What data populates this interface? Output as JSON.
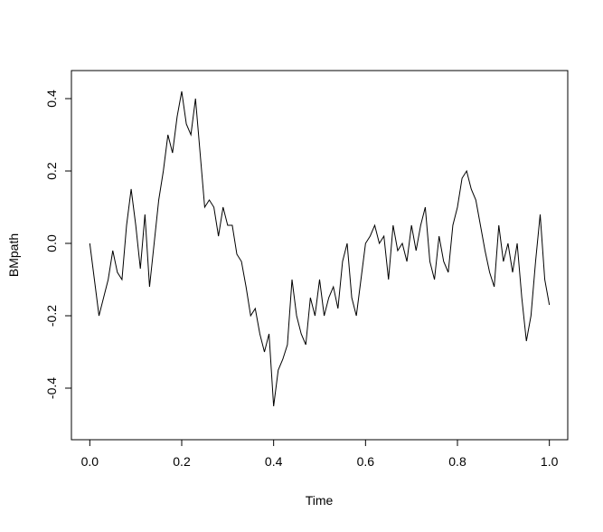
{
  "chart_data": {
    "type": "line",
    "xlabel": "Time",
    "ylabel": "BMpath",
    "x": [
      0,
      0.01,
      0.02,
      0.03,
      0.04,
      0.05,
      0.06,
      0.07,
      0.08,
      0.09,
      0.1,
      0.11,
      0.12,
      0.13,
      0.14,
      0.15,
      0.16,
      0.17,
      0.18,
      0.19,
      0.2,
      0.21,
      0.22,
      0.23,
      0.24,
      0.25,
      0.26,
      0.27,
      0.28,
      0.29,
      0.3,
      0.31,
      0.32,
      0.33,
      0.34,
      0.35,
      0.36,
      0.37,
      0.38,
      0.39,
      0.4,
      0.41,
      0.42,
      0.43,
      0.44,
      0.45,
      0.46,
      0.47,
      0.48,
      0.49,
      0.5,
      0.51,
      0.52,
      0.53,
      0.54,
      0.55,
      0.56,
      0.57,
      0.58,
      0.59,
      0.6,
      0.61,
      0.62,
      0.63,
      0.64,
      0.65,
      0.66,
      0.67,
      0.68,
      0.69,
      0.7,
      0.71,
      0.72,
      0.73,
      0.74,
      0.75,
      0.76,
      0.77,
      0.78,
      0.79,
      0.8,
      0.81,
      0.82,
      0.83,
      0.84,
      0.85,
      0.86,
      0.87,
      0.88,
      0.89,
      0.9,
      0.91,
      0.92,
      0.93,
      0.94,
      0.95,
      0.96,
      0.97,
      0.98,
      0.99,
      1
    ],
    "series": [
      {
        "color": "#000000",
        "values": [
          0,
          -0.1,
          -0.2,
          -0.15,
          -0.1,
          -0.02,
          -0.08,
          -0.1,
          0.05,
          0.15,
          0.05,
          -0.07,
          0.08,
          -0.12,
          0,
          0.12,
          0.2,
          0.3,
          0.25,
          0.35,
          0.42,
          0.33,
          0.3,
          0.4,
          0.25,
          0.1,
          0.12,
          0.1,
          0.02,
          0.1,
          0.05,
          0.05,
          -0.03,
          -0.05,
          -0.12,
          -0.2,
          -0.18,
          -0.25,
          -0.3,
          -0.25,
          -0.45,
          -0.35,
          -0.32,
          -0.28,
          -0.1,
          -0.2,
          -0.25,
          -0.28,
          -0.15,
          -0.2,
          -0.1,
          -0.2,
          -0.15,
          -0.12,
          -0.18,
          -0.05,
          0,
          -0.15,
          -0.2,
          -0.1,
          0,
          0.02,
          0.05,
          0,
          0.02,
          -0.1,
          0.05,
          -0.02,
          0,
          -0.05,
          0.05,
          -0.02,
          0.05,
          0.1,
          -0.05,
          -0.1,
          0.02,
          -0.05,
          -0.08,
          0.05,
          0.1,
          0.18,
          0.2,
          0.15,
          0.12,
          0.05,
          -0.02,
          -0.08,
          -0.12,
          0.05,
          -0.05,
          0,
          -0.08,
          0,
          -0.15,
          -0.27,
          -0.2,
          -0.05,
          0.08,
          -0.1,
          -0.17
        ]
      }
    ],
    "xlim": [
      -0.04,
      1.04
    ],
    "ylim": [
      -0.5425,
      0.4775
    ],
    "xticks": [
      {
        "value": 0,
        "label": "0.0"
      },
      0.2,
      0.4,
      0.6,
      0.8,
      {
        "value": 1,
        "label": "1.0"
      }
    ],
    "yticks": [
      -0.4,
      -0.2,
      {
        "value": 0,
        "label": "0.0"
      },
      0.2,
      0.4
    ]
  }
}
